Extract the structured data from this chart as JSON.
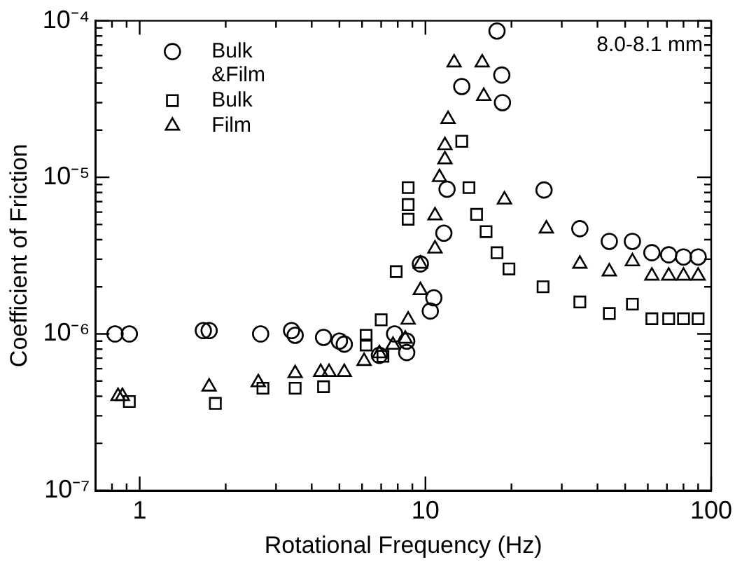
{
  "chart_data": {
    "type": "scatter",
    "xlabel": "Rotational Frequency (Hz)",
    "ylabel": "Coefficient of Friction",
    "log": "xy",
    "grid": false,
    "legend": "top left",
    "xlim": [
      0.7,
      100
    ],
    "ylim": [
      1e-07,
      0.0001
    ],
    "xticks": [
      {
        "value": 0.7,
        "label": null
      },
      {
        "value": 0.8,
        "label": null
      },
      {
        "value": 0.9,
        "label": null
      },
      1,
      {
        "value": 2,
        "label": null
      },
      {
        "value": 3,
        "label": null
      },
      {
        "value": 4,
        "label": null
      },
      {
        "value": 5,
        "label": null
      },
      {
        "value": 6,
        "label": null
      },
      {
        "value": 7,
        "label": null
      },
      {
        "value": 8,
        "label": null
      },
      {
        "value": 9,
        "label": null
      },
      10,
      {
        "value": 20,
        "label": null
      },
      {
        "value": 30,
        "label": null
      },
      {
        "value": 40,
        "label": null
      },
      {
        "value": 50,
        "label": null
      },
      {
        "value": 60,
        "label": null
      },
      {
        "value": 70,
        "label": null
      },
      {
        "value": 80,
        "label": null
      },
      {
        "value": 90,
        "label": null
      },
      100
    ],
    "yticks": [
      {
        "value": 1e-07,
        "label": "10⁻⁷"
      },
      {
        "value": 2e-07,
        "label": null
      },
      {
        "value": 3e-07,
        "label": null
      },
      {
        "value": 4e-07,
        "label": null
      },
      {
        "value": 5e-07,
        "label": null
      },
      {
        "value": 6e-07,
        "label": null
      },
      {
        "value": 7e-07,
        "label": null
      },
      {
        "value": 8e-07,
        "label": null
      },
      {
        "value": 9e-07,
        "label": null
      },
      {
        "value": 1e-06,
        "label": "10⁻⁶"
      },
      {
        "value": 2e-06,
        "label": null
      },
      {
        "value": 3e-06,
        "label": null
      },
      {
        "value": 4e-06,
        "label": null
      },
      {
        "value": 5e-06,
        "label": null
      },
      {
        "value": 6e-06,
        "label": null
      },
      {
        "value": 7e-06,
        "label": null
      },
      {
        "value": 8e-06,
        "label": null
      },
      {
        "value": 9e-06,
        "label": null
      },
      {
        "value": 1e-05,
        "label": "10⁻⁵"
      },
      {
        "value": 2e-05,
        "label": null
      },
      {
        "value": 3e-05,
        "label": null
      },
      {
        "value": 4e-05,
        "label": null
      },
      {
        "value": 5e-05,
        "label": null
      },
      {
        "value": 6e-05,
        "label": null
      },
      {
        "value": 7e-05,
        "label": null
      },
      {
        "value": 8e-05,
        "label": null
      },
      {
        "value": 9e-05,
        "label": null
      },
      {
        "value": 0.0001,
        "label": "10⁻⁴"
      }
    ],
    "annotations": [
      "8.0-8.1 mm"
    ],
    "series": [
      {
        "name": "Bulk &Film",
        "color": "#000000",
        "marker": "circle",
        "x": [
          0.82,
          0.92,
          1.67,
          1.75,
          2.65,
          3.4,
          3.5,
          4.4,
          5.0,
          5.2,
          6.9,
          7.8,
          8.6,
          8.6,
          9.6,
          10.4,
          10.7,
          11.6,
          11.9,
          13.4,
          17.8,
          18.5,
          18.6,
          26,
          34.7,
          44,
          53,
          62,
          71,
          80,
          90
        ],
        "values": [
          1e-06,
          1e-06,
          1.05e-06,
          1.05e-06,
          1e-06,
          1.05e-06,
          9.8e-07,
          9.5e-07,
          9e-07,
          8.6e-07,
          7.3e-07,
          1e-06,
          9e-07,
          7.6e-07,
          2.8e-06,
          1.4e-06,
          1.7e-06,
          4.4e-06,
          8.4e-06,
          3.8e-05,
          8.6e-05,
          4.5e-05,
          3e-05,
          8.3e-06,
          4.7e-06,
          3.9e-06,
          3.9e-06,
          3.3e-06,
          3.2e-06,
          3.1e-06,
          3.1e-06
        ]
      },
      {
        "name": "Bulk",
        "color": "#000000",
        "marker": "square",
        "x": [
          0.92,
          1.84,
          2.7,
          3.5,
          4.4,
          6.2,
          6.2,
          7.0,
          7.1,
          7.9,
          8.7,
          8.7,
          8.7,
          13.4,
          14.2,
          15.1,
          16.3,
          17.8,
          19.6,
          25.8,
          34.7,
          44,
          53,
          62,
          71,
          80,
          90
        ],
        "values": [
          3.7e-07,
          3.6e-07,
          4.5e-07,
          4.5e-07,
          4.6e-07,
          9.8e-07,
          8.5e-07,
          1.23e-06,
          7.2e-07,
          2.5e-06,
          8.6e-06,
          6.7e-06,
          5.4e-06,
          1.7e-05,
          8.6e-06,
          5.8e-06,
          4.5e-06,
          3.3e-06,
          2.6e-06,
          2e-06,
          1.6e-06,
          1.35e-06,
          1.55e-06,
          1.25e-06,
          1.25e-06,
          1.25e-06,
          1.25e-06
        ]
      },
      {
        "name": "Film",
        "color": "#000000",
        "marker": "triangle",
        "x": [
          0.84,
          0.87,
          1.75,
          2.6,
          3.5,
          4.3,
          4.6,
          5.2,
          6.1,
          6.9,
          7.7,
          8.5,
          8.7,
          9.6,
          9.6,
          10.8,
          10.8,
          11.2,
          11.7,
          11.7,
          12.0,
          12.6,
          15.8,
          16.0,
          18.9,
          26.5,
          34.7,
          44,
          53,
          62,
          71,
          80,
          90
        ],
        "values": [
          4e-07,
          4e-07,
          4.6e-07,
          4.9e-07,
          5.6e-07,
          5.7e-07,
          5.7e-07,
          5.7e-07,
          6.7e-07,
          7.5e-07,
          8.5e-07,
          9.3e-07,
          1.23e-06,
          2.8e-06,
          1.9e-06,
          3.5e-06,
          5.7e-06,
          1e-05,
          1.3e-05,
          1.6e-05,
          2.35e-05,
          5.4e-05,
          5.4e-05,
          3.3e-05,
          7.2e-06,
          4.7e-06,
          2.8e-06,
          2.5e-06,
          2.9e-06,
          2.35e-06,
          2.35e-06,
          2.35e-06,
          2.35e-06
        ]
      }
    ]
  }
}
